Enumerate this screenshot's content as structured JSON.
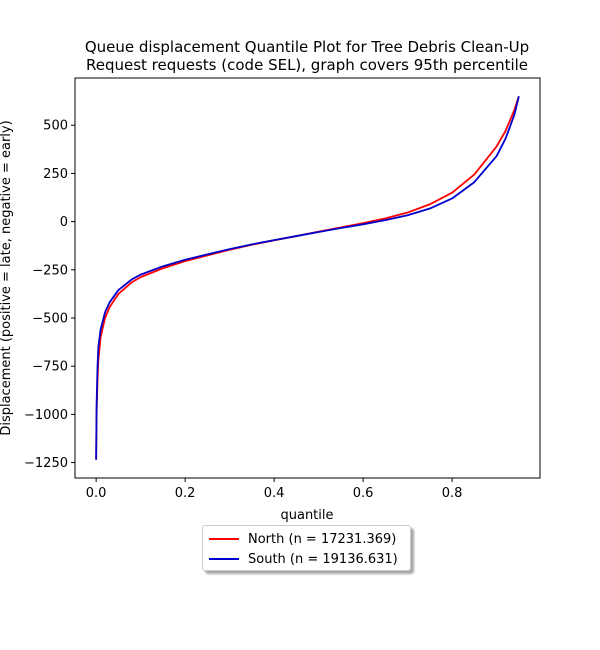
{
  "chart_data": {
    "type": "line",
    "title_line1": "Queue displacement Quantile Plot for Tree Debris Clean-Up",
    "title_line2": "Request  requests (code SEL), graph covers 95th percentile",
    "xlabel": "quantile",
    "ylabel": "Displacement (positive = late, negative = early)",
    "xlim": [
      -0.0475,
      0.9975
    ],
    "ylim": [
      -1330,
      745
    ],
    "xticks": [
      0.0,
      0.2,
      0.4,
      0.6,
      0.8
    ],
    "xtick_labels": [
      "0.0",
      "0.2",
      "0.4",
      "0.6",
      "0.8"
    ],
    "yticks": [
      -1250,
      -1000,
      -750,
      -500,
      -250,
      0,
      250,
      500
    ],
    "ytick_labels": [
      "−1250",
      "−1000",
      "−750",
      "−500",
      "−250",
      "0",
      "250",
      "500"
    ],
    "grid": false,
    "legend_position": "below",
    "series": [
      {
        "name": "North (n = 17231.369)",
        "color": "#ff0000",
        "x": [
          0.0,
          0.001,
          0.003,
          0.005,
          0.01,
          0.02,
          0.03,
          0.05,
          0.08,
          0.1,
          0.15,
          0.2,
          0.25,
          0.3,
          0.35,
          0.4,
          0.45,
          0.5,
          0.55,
          0.6,
          0.65,
          0.7,
          0.75,
          0.8,
          0.85,
          0.9,
          0.92,
          0.94,
          0.95
        ],
        "y": [
          -1235,
          -1000,
          -830,
          -720,
          -600,
          -500,
          -445,
          -375,
          -315,
          -288,
          -242,
          -205,
          -175,
          -146,
          -120,
          -97,
          -75,
          -52,
          -30,
          -8,
          17,
          47,
          90,
          150,
          245,
          390,
          470,
          580,
          650
        ]
      },
      {
        "name": "South (n = 19136.631)",
        "color": "#0000cc",
        "x": [
          0.0,
          0.001,
          0.003,
          0.005,
          0.01,
          0.02,
          0.03,
          0.05,
          0.08,
          0.1,
          0.15,
          0.2,
          0.25,
          0.3,
          0.35,
          0.4,
          0.45,
          0.5,
          0.55,
          0.6,
          0.65,
          0.7,
          0.75,
          0.8,
          0.85,
          0.9,
          0.92,
          0.94,
          0.95
        ],
        "y": [
          -1235,
          -950,
          -760,
          -650,
          -560,
          -470,
          -420,
          -355,
          -300,
          -275,
          -232,
          -198,
          -170,
          -143,
          -118,
          -96,
          -75,
          -54,
          -33,
          -14,
          8,
          33,
          68,
          120,
          205,
          340,
          430,
          555,
          650
        ]
      }
    ]
  }
}
